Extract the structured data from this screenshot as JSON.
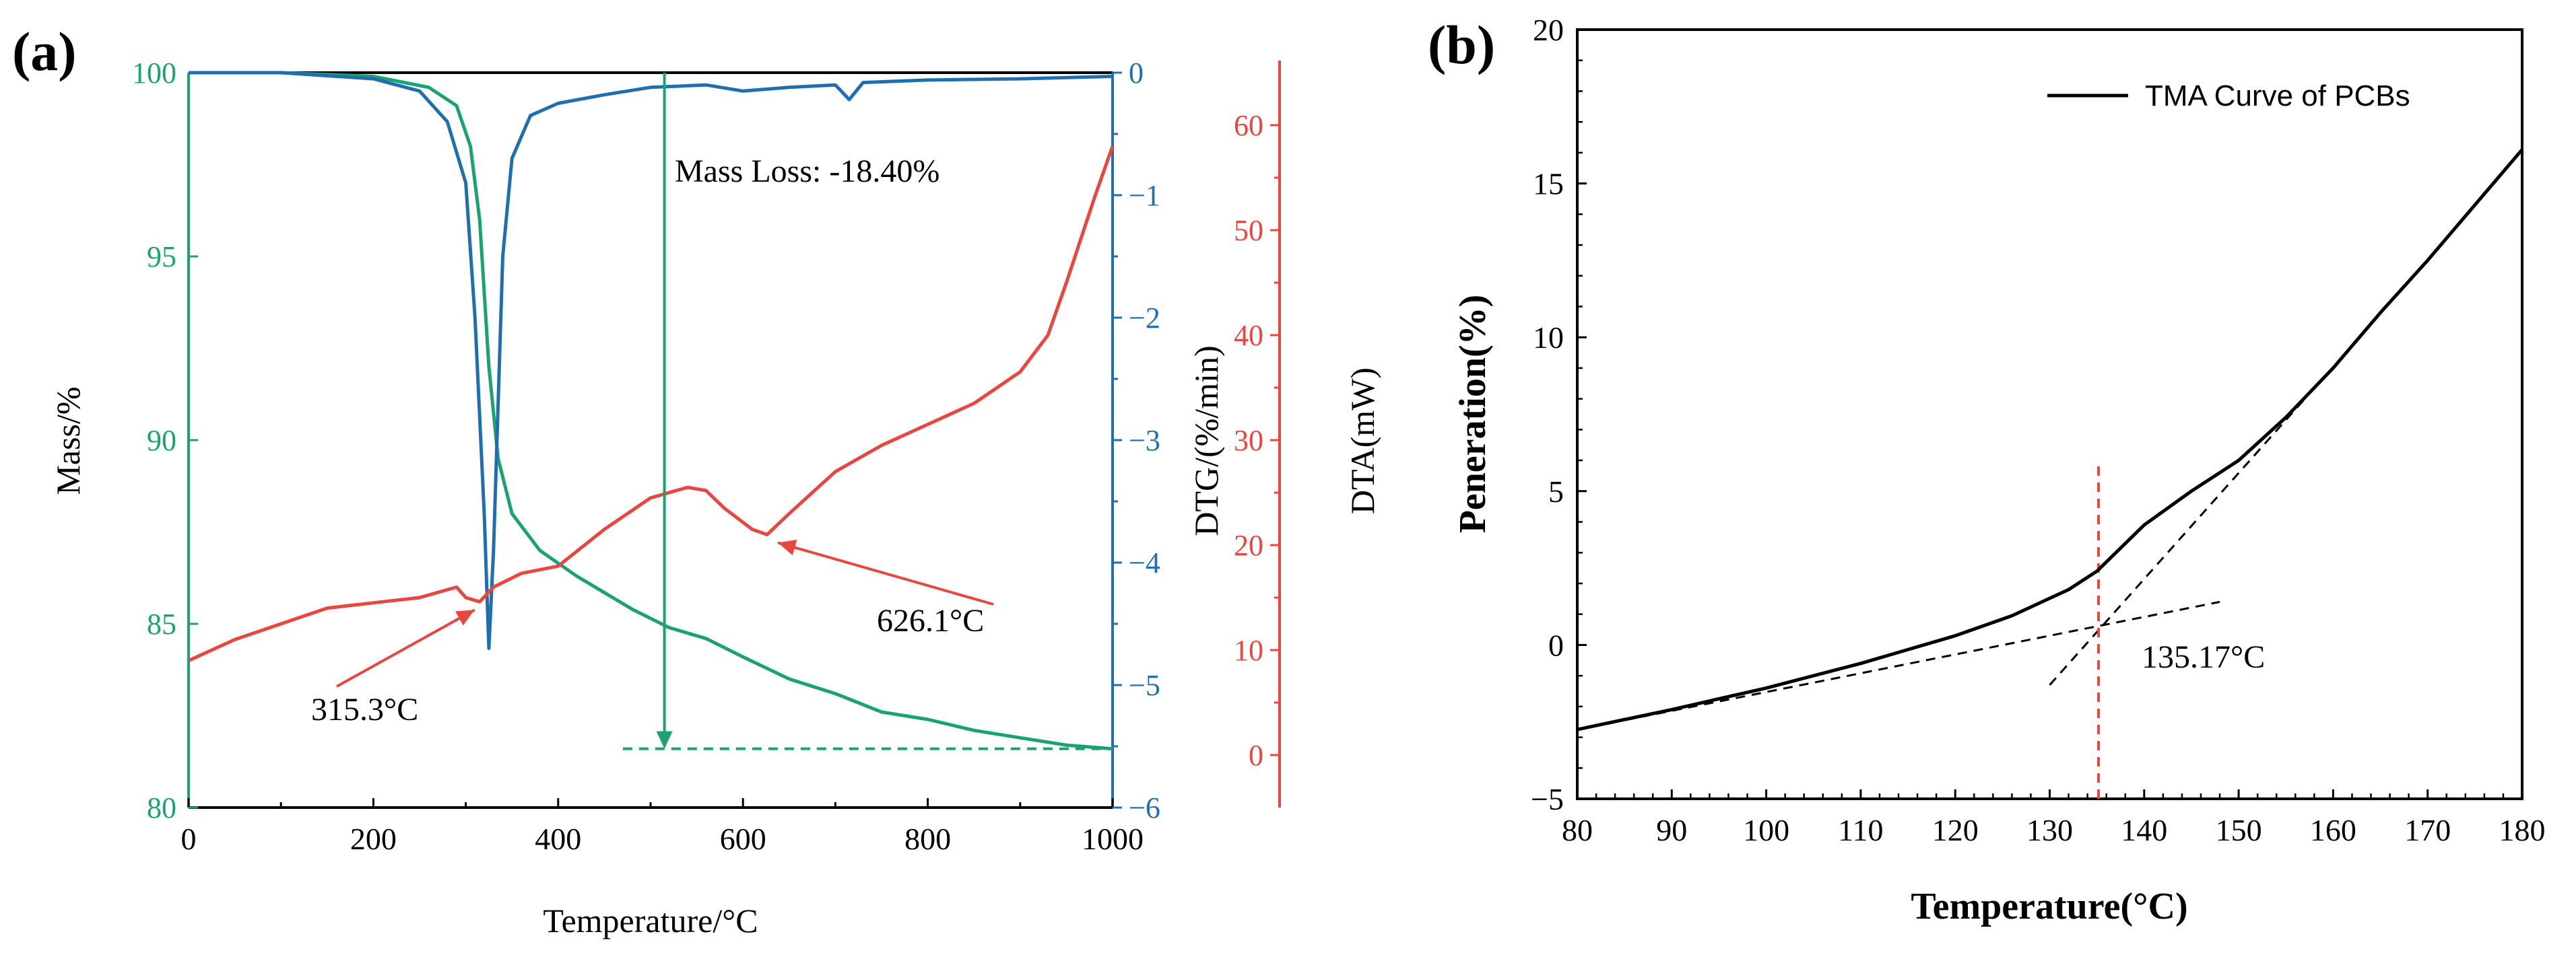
{
  "chart_data": [
    {
      "panel": "(a)",
      "type": "line",
      "x": {
        "label": "Temperature/°C",
        "range": [
          0,
          1000
        ],
        "ticks": [
          0,
          200,
          400,
          600,
          800,
          1000
        ]
      },
      "axes": [
        {
          "side": "left",
          "label": "Mass/%",
          "color": "#1aa371",
          "range": [
            80,
            100
          ],
          "ticks": [
            80,
            85,
            90,
            95,
            100
          ]
        },
        {
          "side": "right",
          "label": "DTG/(%/min)",
          "color": "#1f6fb0",
          "range": [
            -6,
            0
          ],
          "ticks": [
            -6,
            -5,
            -4,
            -3,
            -2,
            -1,
            0
          ],
          "tick_labels": [
            "−6",
            "−5",
            "−4",
            "−3",
            "−2",
            "−1",
            "0"
          ]
        },
        {
          "side": "right-offset",
          "label": "DTA(mW)",
          "color": "#e8463e",
          "range": [
            -5,
            65
          ],
          "ticks": [
            0,
            10,
            20,
            30,
            40,
            50,
            60
          ]
        }
      ],
      "series": [
        {
          "name": "Mass",
          "color": "#1aa371",
          "axis": "Mass/%",
          "points": [
            [
              0,
              100
            ],
            [
              100,
              100
            ],
            [
              200,
              99.9
            ],
            [
              260,
              99.6
            ],
            [
              290,
              99.1
            ],
            [
              305,
              98
            ],
            [
              315,
              96
            ],
            [
              325,
              92
            ],
            [
              335,
              89.5
            ],
            [
              350,
              88
            ],
            [
              380,
              87
            ],
            [
              420,
              86.3
            ],
            [
              480,
              85.4
            ],
            [
              520,
              84.9
            ],
            [
              560,
              84.6
            ],
            [
              600,
              84.1
            ],
            [
              650,
              83.5
            ],
            [
              700,
              83.1
            ],
            [
              750,
              82.6
            ],
            [
              800,
              82.4
            ],
            [
              850,
              82.1
            ],
            [
              900,
              81.9
            ],
            [
              950,
              81.7
            ],
            [
              1000,
              81.6
            ]
          ]
        },
        {
          "name": "DTG",
          "color": "#1f6fb0",
          "axis": "DTG/(%/min)",
          "points": [
            [
              0,
              0
            ],
            [
              100,
              0
            ],
            [
              200,
              -0.05
            ],
            [
              250,
              -0.15
            ],
            [
              280,
              -0.4
            ],
            [
              300,
              -0.9
            ],
            [
              310,
              -2.0
            ],
            [
              320,
              -3.6
            ],
            [
              325,
              -4.7
            ],
            [
              330,
              -3.9
            ],
            [
              340,
              -1.5
            ],
            [
              350,
              -0.7
            ],
            [
              370,
              -0.35
            ],
            [
              400,
              -0.25
            ],
            [
              450,
              -0.18
            ],
            [
              500,
              -0.12
            ],
            [
              560,
              -0.1
            ],
            [
              600,
              -0.15
            ],
            [
              650,
              -0.12
            ],
            [
              700,
              -0.1
            ],
            [
              715,
              -0.22
            ],
            [
              730,
              -0.08
            ],
            [
              800,
              -0.06
            ],
            [
              900,
              -0.05
            ],
            [
              1000,
              -0.03
            ]
          ]
        },
        {
          "name": "DTA",
          "color": "#e8463e",
          "axis": "DTA(mW)",
          "points": [
            [
              0,
              9
            ],
            [
              50,
              11
            ],
            [
              100,
              12.5
            ],
            [
              150,
              14
            ],
            [
              200,
              14.5
            ],
            [
              250,
              15
            ],
            [
              290,
              16
            ],
            [
              300,
              15
            ],
            [
              315,
              14.6
            ],
            [
              330,
              16
            ],
            [
              360,
              17.3
            ],
            [
              400,
              18
            ],
            [
              450,
              21.5
            ],
            [
              500,
              24.5
            ],
            [
              540,
              25.5
            ],
            [
              560,
              25.2
            ],
            [
              580,
              23.5
            ],
            [
              610,
              21.5
            ],
            [
              626,
              21
            ],
            [
              650,
              23
            ],
            [
              700,
              27
            ],
            [
              750,
              29.5
            ],
            [
              800,
              31.5
            ],
            [
              850,
              33.5
            ],
            [
              900,
              36.5
            ],
            [
              930,
              40
            ],
            [
              950,
              45
            ],
            [
              980,
              53
            ],
            [
              1000,
              58
            ]
          ]
        }
      ],
      "annotations": [
        {
          "text": "Mass Loss: -18.40%",
          "arrow_x": 515,
          "from_mass": 100,
          "to_mass": 81.6
        },
        {
          "text": "315.3°C",
          "x": 315.3,
          "dta": 14.6
        },
        {
          "text": "626.1°C",
          "x": 626.1,
          "dta": 21
        }
      ]
    },
    {
      "panel": "(b)",
      "type": "line",
      "x": {
        "label": "Temperature(°C)",
        "range": [
          80,
          180
        ],
        "ticks": [
          80,
          90,
          100,
          110,
          120,
          130,
          140,
          150,
          160,
          170,
          180
        ]
      },
      "y": {
        "label": "Peneration(%)",
        "range": [
          -5,
          20
        ],
        "ticks": [
          -5,
          0,
          5,
          10,
          15,
          20
        ],
        "tick_labels": [
          "−5",
          "0",
          "5",
          "10",
          "15",
          "20"
        ]
      },
      "series": [
        {
          "name": "TMA Curve of PCBs",
          "color": "#000000",
          "points": [
            [
              80,
              -2.75
            ],
            [
              90,
              -2.1
            ],
            [
              100,
              -1.4
            ],
            [
              110,
              -0.6
            ],
            [
              120,
              0.3
            ],
            [
              126,
              0.95
            ],
            [
              132,
              1.8
            ],
            [
              135,
              2.4
            ],
            [
              140,
              3.9
            ],
            [
              145,
              5.0
            ],
            [
              150,
              6.0
            ],
            [
              155,
              7.4
            ],
            [
              160,
              9.0
            ],
            [
              165,
              10.8
            ],
            [
              170,
              12.5
            ],
            [
              175,
              14.3
            ],
            [
              180,
              16.1
            ]
          ]
        }
      ],
      "guides": [
        {
          "name": "tangent-low",
          "points": [
            [
              80,
              -2.75
            ],
            [
              148,
              1.4
            ]
          ]
        },
        {
          "name": "tangent-high",
          "points": [
            [
              130,
              -1.3
            ],
            [
              157,
              8.0
            ]
          ]
        },
        {
          "name": "onset-vertical",
          "points": [
            [
              135.17,
              -5
            ],
            [
              135.17,
              6
            ]
          ]
        }
      ],
      "annotations": [
        {
          "text": "135.17°C",
          "x": 135.17,
          "y": 0.6
        }
      ],
      "legend": {
        "position": "top-right"
      }
    }
  ]
}
